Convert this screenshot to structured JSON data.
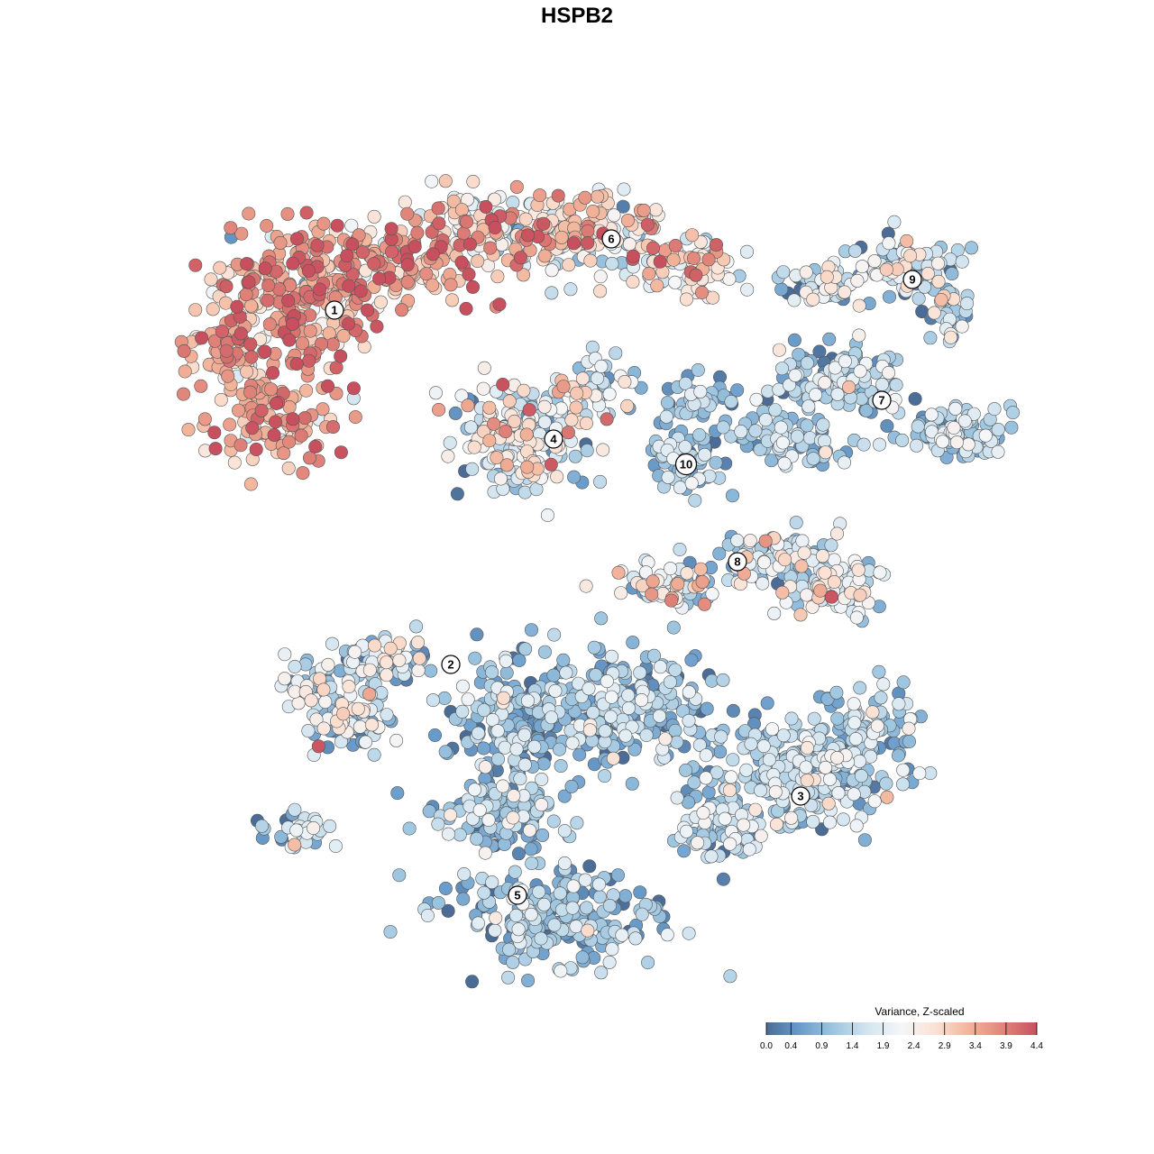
{
  "chart_data": {
    "type": "scatter",
    "title": "HSPB2",
    "xlabel": "",
    "ylabel": "",
    "grid": false,
    "colorbar": {
      "title": "Variance, Z-scaled",
      "ticks": [
        "0.0",
        "0.4",
        "0.9",
        "1.4",
        "1.9",
        "2.4",
        "2.9",
        "3.4",
        "3.9",
        "4.4"
      ],
      "min": 0.0,
      "max": 4.4,
      "placement": "bottom-right",
      "colors": [
        "#4a6c96",
        "#6a9ccb",
        "#9ec6e0",
        "#d3e5f0",
        "#f4f6f8",
        "#fbe1d3",
        "#f2b49a",
        "#e1857a",
        "#c8505e"
      ]
    },
    "clusters": [
      {
        "label": "1",
        "mean_value": 3.4,
        "spread": 0.7
      },
      {
        "label": "2",
        "mean_value": 1.6,
        "spread": 0.8
      },
      {
        "label": "3",
        "mean_value": 1.3,
        "spread": 0.6
      },
      {
        "label": "4",
        "mean_value": 1.8,
        "spread": 0.9
      },
      {
        "label": "5",
        "mean_value": 1.0,
        "spread": 0.6
      },
      {
        "label": "6",
        "mean_value": 2.6,
        "spread": 0.9
      },
      {
        "label": "7",
        "mean_value": 1.2,
        "spread": 0.6
      },
      {
        "label": "8",
        "mean_value": 1.7,
        "spread": 0.8
      },
      {
        "label": "9",
        "mean_value": 1.5,
        "spread": 0.9
      },
      {
        "label": "10",
        "mean_value": 1.0,
        "spread": 0.5
      }
    ]
  }
}
